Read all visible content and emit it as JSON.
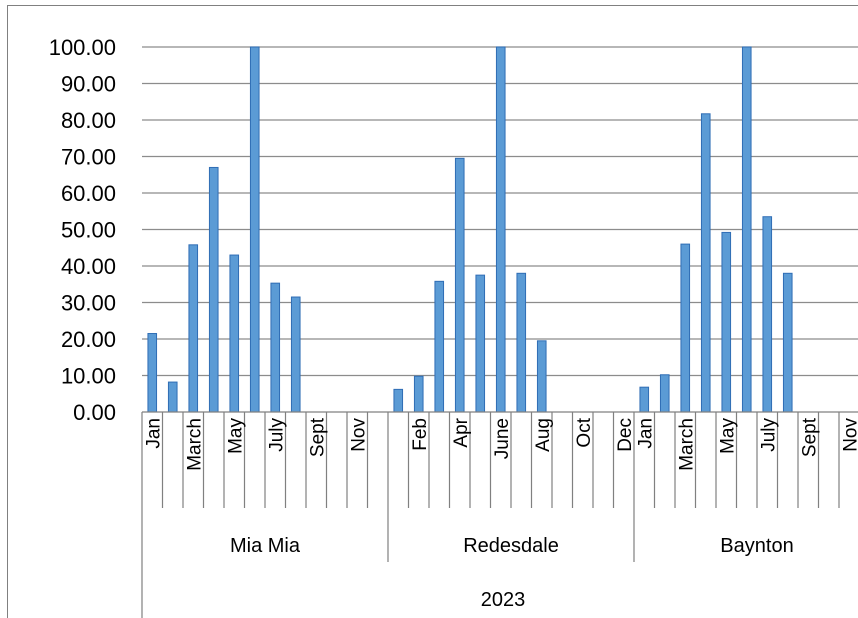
{
  "chart_data": {
    "type": "bar",
    "title": "",
    "xlabel": "",
    "ylabel": "",
    "ylim": [
      0,
      100
    ],
    "yticks": [
      "0.00",
      "10.00",
      "20.00",
      "30.00",
      "40.00",
      "50.00",
      "60.00",
      "70.00",
      "80.00",
      "90.00",
      "100.00"
    ],
    "grid": true,
    "year": "2023",
    "groups": [
      {
        "name": "Mia Mia",
        "months": [
          "Jan",
          "Feb",
          "March",
          "Apr",
          "May",
          "June",
          "July",
          "Aug",
          "Sept",
          "Oct",
          "Nov",
          "Dec"
        ],
        "tick_labels": [
          "Jan",
          "",
          "March",
          "",
          "May",
          "",
          "July",
          "",
          "Sept",
          "",
          "Nov",
          ""
        ],
        "values": [
          21.5,
          8.2,
          45.8,
          67.0,
          43.0,
          100,
          35.3,
          31.5,
          null,
          null,
          null,
          null
        ]
      },
      {
        "name": "Redesdale",
        "months": [
          "Jan",
          "Feb",
          "March",
          "Apr",
          "May",
          "June",
          "July",
          "Aug",
          "Sept",
          "Oct",
          "Nov",
          "Dec"
        ],
        "tick_labels": [
          "",
          "Feb",
          "",
          "Apr",
          "",
          "June",
          "",
          "Aug",
          "",
          "Oct",
          "",
          "Dec"
        ],
        "values": [
          6.2,
          9.8,
          35.8,
          69.5,
          37.5,
          100,
          38.0,
          19.5,
          null,
          null,
          null,
          null
        ]
      },
      {
        "name": "Baynton",
        "months": [
          "Jan",
          "Feb",
          "March",
          "Apr",
          "May",
          "June",
          "July",
          "Aug",
          "Sept",
          "Oct",
          "Nov",
          "Dec"
        ],
        "tick_labels": [
          "Jan",
          "",
          "March",
          "",
          "May",
          "",
          "July",
          "",
          "Sept",
          "",
          "Nov",
          ""
        ],
        "values": [
          6.8,
          10.2,
          46.0,
          81.7,
          49.2,
          100,
          53.5,
          38.0,
          null,
          null,
          null,
          null
        ]
      }
    ],
    "bar_color": "#5b9bd5",
    "bar_edge_color": "#2f6db5"
  }
}
